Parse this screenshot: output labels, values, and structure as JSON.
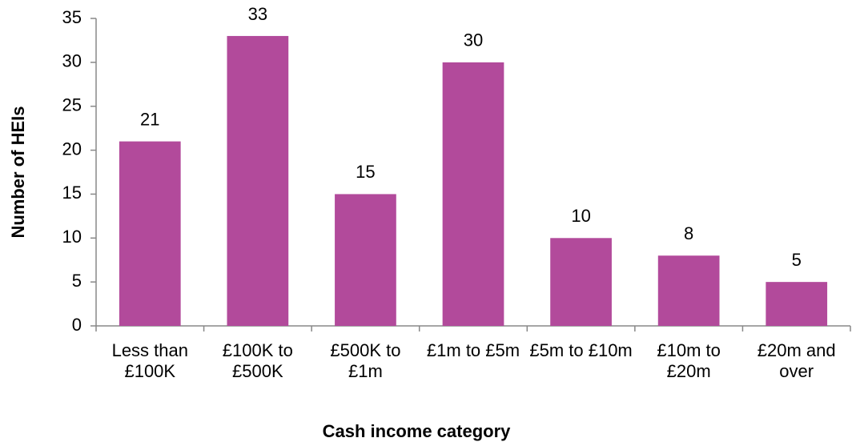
{
  "chart_data": {
    "type": "bar",
    "categories": [
      "Less than £100K",
      "£100K to £500K",
      "£500K to £1m",
      "£1m to £5m",
      "£5m to £10m",
      "£10m to £20m",
      "£20m and over"
    ],
    "values": [
      21,
      33,
      15,
      30,
      10,
      8,
      5
    ],
    "color": "#b24a9b",
    "ylim": [
      0,
      35
    ],
    "yticks": [
      0,
      5,
      10,
      15,
      20,
      25,
      30,
      35
    ],
    "x_label": "Cash income category",
    "y_label": "Number of HEIs",
    "grid": false
  }
}
